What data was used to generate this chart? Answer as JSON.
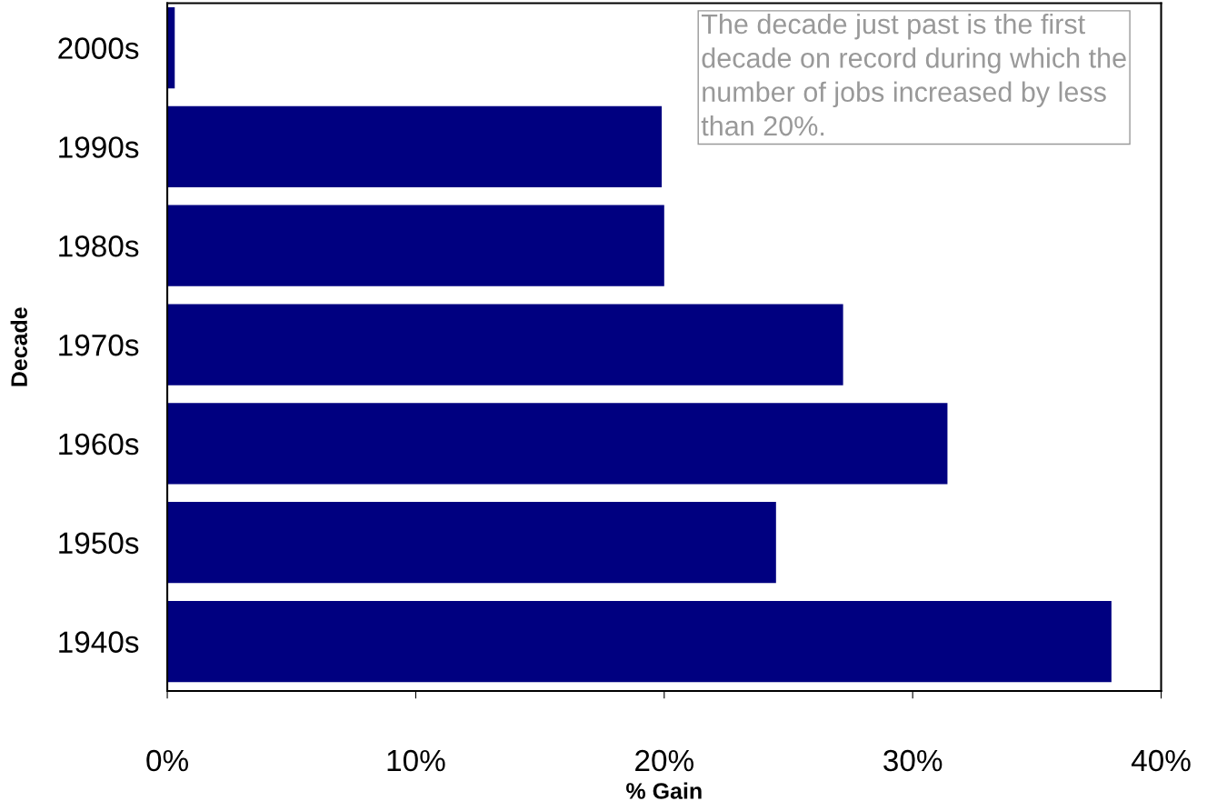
{
  "chart_data": {
    "type": "bar",
    "orientation": "horizontal",
    "categories": [
      "2000s",
      "1990s",
      "1980s",
      "1970s",
      "1960s",
      "1950s",
      "1940s"
    ],
    "values": [
      0.3,
      19.9,
      20.0,
      27.2,
      31.4,
      24.5,
      38.0
    ],
    "color": "#000080",
    "xlabel": "% Gain",
    "ylabel": "Decade",
    "xlim": [
      0,
      40
    ],
    "xticks": [
      {
        "value": 0,
        "label": "0%"
      },
      {
        "value": 10,
        "label": "10%"
      },
      {
        "value": 20,
        "label": "20%"
      },
      {
        "value": 30,
        "label": "30%"
      },
      {
        "value": 40,
        "label": "40%"
      }
    ],
    "annotations": [
      "The decade just past is the first decade on record during which the number of jobs increased by less than 20%."
    ],
    "grid": false,
    "legend": false
  }
}
